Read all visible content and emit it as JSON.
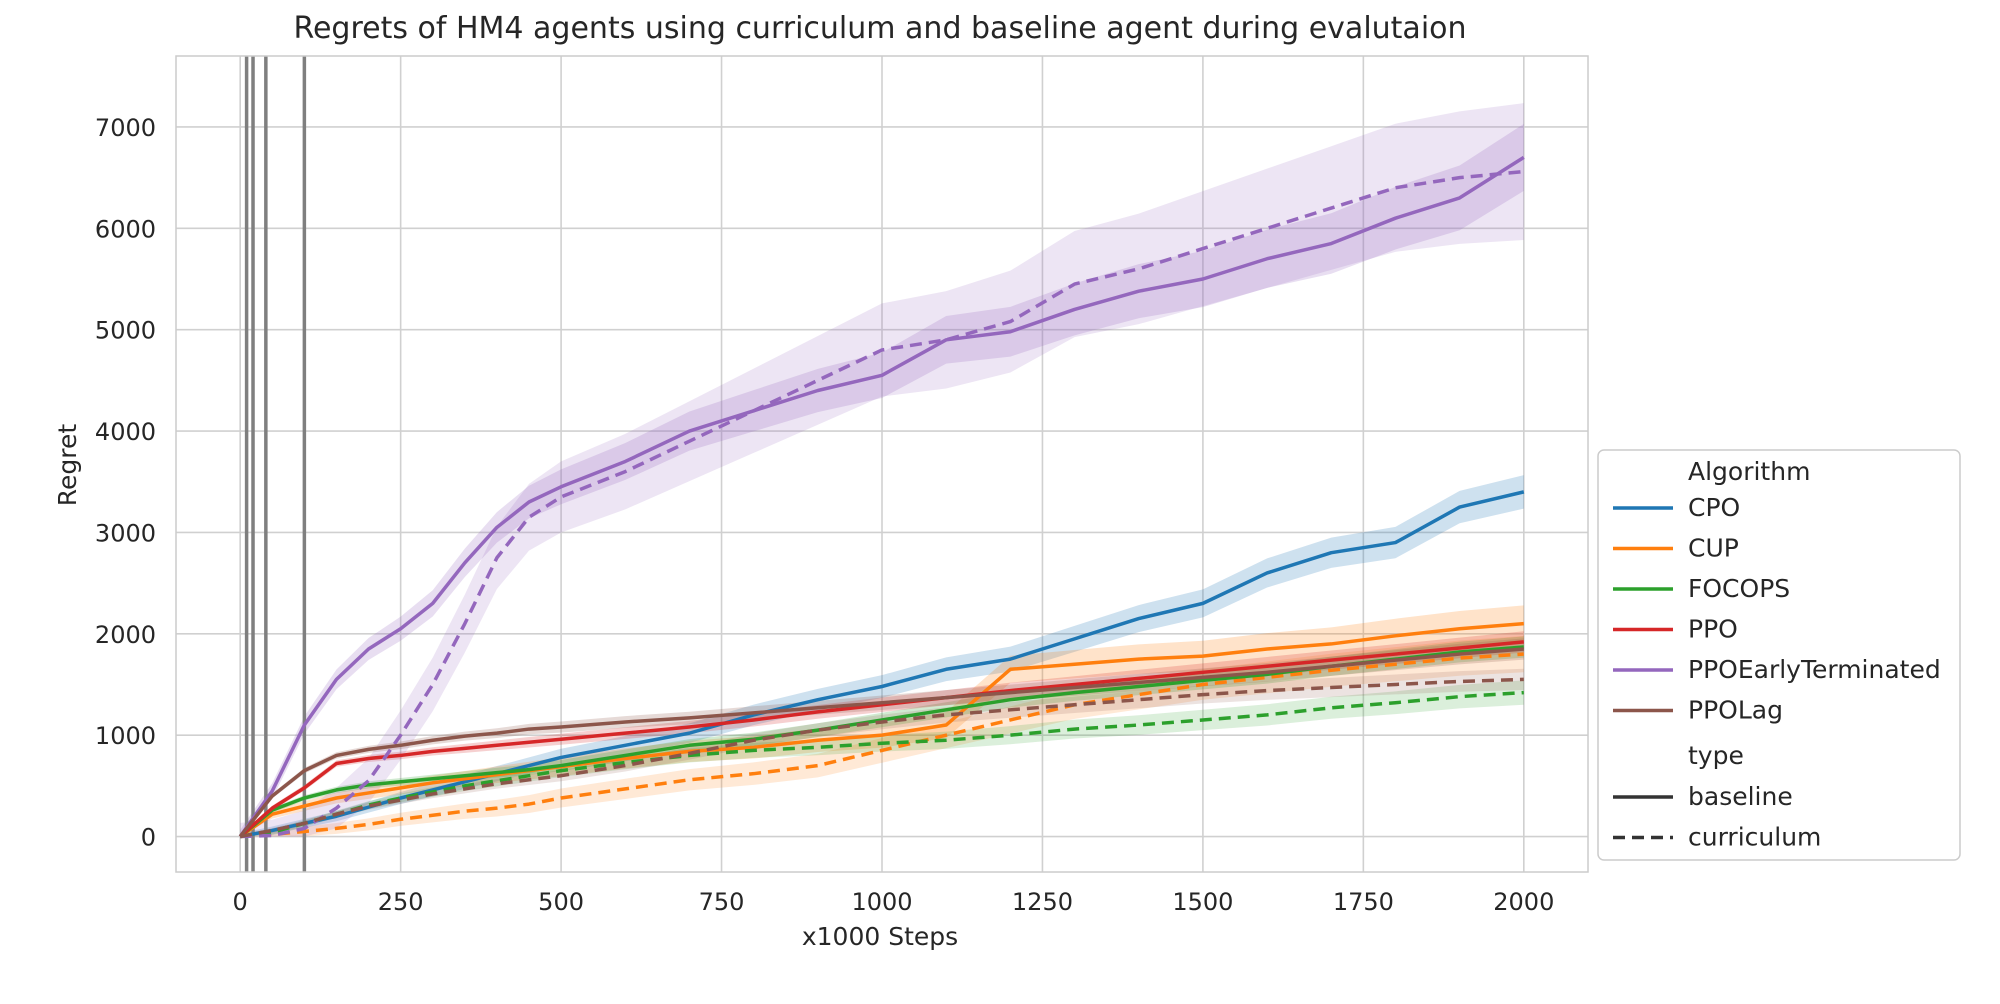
{
  "chart_data": {
    "type": "line",
    "title": "Regrets of HM4 agents using curriculum and baseline agent during evalutaion",
    "xlabel": "x1000 Steps",
    "ylabel": "Regret",
    "xlim": [
      -100,
      2100
    ],
    "ylim": [
      -350,
      7700
    ],
    "xticks": [
      0,
      250,
      500,
      750,
      1000,
      1250,
      1500,
      1750,
      2000
    ],
    "yticks": [
      0,
      1000,
      2000,
      3000,
      4000,
      5000,
      6000,
      7000
    ],
    "grid": true,
    "vertical_lines": [
      10,
      20,
      40,
      100
    ],
    "legend": {
      "placement": "right",
      "algorithm_title": "Algorithm",
      "type_title": "type",
      "type_entries": [
        {
          "label": "baseline",
          "dash": "solid"
        },
        {
          "label": "curriculum",
          "dash": "dashed"
        }
      ]
    },
    "x": [
      0,
      50,
      100,
      150,
      200,
      250,
      300,
      350,
      400,
      450,
      500,
      600,
      700,
      800,
      900,
      1000,
      1100,
      1200,
      1300,
      1400,
      1500,
      1600,
      1700,
      1800,
      1900,
      2000
    ],
    "series": [
      {
        "name": "CPO",
        "color": "#1f77b4",
        "baseline": [
          0,
          60,
          130,
          200,
          290,
          380,
          460,
          540,
          620,
          700,
          780,
          900,
          1020,
          1200,
          1350,
          1480,
          1650,
          1750,
          1950,
          2150,
          2300,
          2600,
          2800,
          2900,
          3250,
          3400
        ],
        "baseline_band": 110,
        "curriculum": null
      },
      {
        "name": "CUP",
        "color": "#ff7f0e",
        "baseline": [
          0,
          220,
          300,
          380,
          430,
          480,
          530,
          570,
          610,
          650,
          690,
          770,
          840,
          880,
          950,
          1000,
          1100,
          1650,
          1700,
          1750,
          1780,
          1850,
          1900,
          1980,
          2050,
          2100
        ],
        "baseline_band": 120,
        "curriculum": [
          0,
          20,
          50,
          80,
          120,
          170,
          210,
          250,
          280,
          320,
          380,
          470,
          560,
          620,
          700,
          850,
          1000,
          1150,
          1300,
          1400,
          1500,
          1570,
          1640,
          1700,
          1760,
          1800
        ],
        "curriculum_band": 120
      },
      {
        "name": "FOCOPS",
        "color": "#2ca02c",
        "baseline": [
          0,
          260,
          380,
          460,
          510,
          540,
          570,
          600,
          630,
          660,
          700,
          800,
          900,
          960,
          1050,
          1150,
          1250,
          1350,
          1420,
          1480,
          1540,
          1600,
          1680,
          1750,
          1820,
          1870
        ],
        "baseline_band": 70,
        "curriculum": [
          0,
          40,
          130,
          220,
          310,
          380,
          440,
          500,
          550,
          600,
          650,
          730,
          800,
          850,
          880,
          920,
          950,
          1000,
          1060,
          1100,
          1150,
          1200,
          1270,
          1320,
          1380,
          1420
        ],
        "curriculum_band": 80
      },
      {
        "name": "PPO",
        "color": "#d62728",
        "baseline": [
          0,
          280,
          480,
          720,
          770,
          800,
          840,
          870,
          900,
          930,
          960,
          1020,
          1080,
          1150,
          1230,
          1300,
          1370,
          1440,
          1500,
          1560,
          1620,
          1680,
          1740,
          1800,
          1860,
          1920
        ],
        "baseline_band": 70,
        "curriculum": null
      },
      {
        "name": "PPOEarlyTerminated",
        "color": "#9467bd",
        "baseline": [
          0,
          450,
          1100,
          1550,
          1850,
          2050,
          2300,
          2700,
          3050,
          3300,
          3450,
          3700,
          4000,
          4200,
          4400,
          4550,
          4900,
          4980,
          5200,
          5380,
          5500,
          5700,
          5850,
          6100,
          6300,
          6700
        ],
        "baseline_band": 220,
        "curriculum": [
          0,
          10,
          80,
          280,
          550,
          1000,
          1500,
          2100,
          2750,
          3150,
          3350,
          3600,
          3900,
          4200,
          4500,
          4800,
          4900,
          5080,
          5450,
          5600,
          5800,
          6000,
          6200,
          6400,
          6500,
          6560
        ],
        "curriculum_band": 450
      },
      {
        "name": "PPOLag",
        "color": "#8c564b",
        "baseline": [
          0,
          400,
          650,
          800,
          860,
          900,
          950,
          990,
          1020,
          1060,
          1080,
          1130,
          1170,
          1220,
          1270,
          1320,
          1370,
          1420,
          1470,
          1520,
          1570,
          1620,
          1680,
          1740,
          1800,
          1850
        ],
        "baseline_band": 70,
        "curriculum": [
          0,
          60,
          130,
          220,
          300,
          360,
          420,
          470,
          520,
          560,
          600,
          700,
          820,
          950,
          1050,
          1130,
          1200,
          1250,
          1300,
          1350,
          1400,
          1440,
          1470,
          1500,
          1530,
          1550
        ],
        "curriculum_band": 70
      }
    ]
  }
}
